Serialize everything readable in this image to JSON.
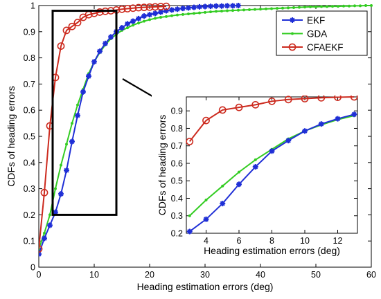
{
  "chart_data": [
    {
      "type": "line",
      "role": "main",
      "xlabel": "Heading estimation errors (deg)",
      "ylabel": "CDFs of heading errors",
      "xlim": [
        0,
        60
      ],
      "ylim": [
        0,
        1
      ],
      "xticks": [
        0,
        10,
        20,
        30,
        40,
        50,
        60
      ],
      "yticks": [
        0,
        0.1,
        0.2,
        0.3,
        0.4,
        0.5,
        0.6,
        0.7,
        0.8,
        0.9,
        1
      ],
      "grid": false,
      "legend": "top-right",
      "series": [
        {
          "name": "EKF",
          "color": "#1f2fd6",
          "marker": "star",
          "x": [
            0,
            1,
            2,
            3,
            4,
            5,
            6,
            7,
            8,
            9,
            10,
            11,
            12,
            13,
            14,
            15,
            16,
            17,
            18,
            19,
            20,
            21,
            22,
            23,
            24,
            25,
            26,
            27,
            28,
            29,
            30,
            31,
            32,
            33,
            34,
            35,
            36
          ],
          "y": [
            0.05,
            0.11,
            0.16,
            0.21,
            0.28,
            0.37,
            0.48,
            0.58,
            0.67,
            0.73,
            0.785,
            0.825,
            0.855,
            0.88,
            0.9,
            0.915,
            0.93,
            0.94,
            0.95,
            0.96,
            0.965,
            0.97,
            0.975,
            0.98,
            0.983,
            0.986,
            0.989,
            0.991,
            0.993,
            0.995,
            0.996,
            0.997,
            0.998,
            0.998,
            0.999,
            0.999,
            1.0
          ]
        },
        {
          "name": "GDA",
          "color": "#33cc22",
          "marker": "dot",
          "x": [
            0,
            1,
            2,
            3,
            4,
            5,
            6,
            7,
            8,
            9,
            10,
            11,
            12,
            13,
            14,
            15,
            16,
            17,
            18,
            19,
            20,
            21,
            22,
            23,
            24,
            25,
            26,
            27,
            28,
            29,
            30,
            31,
            32,
            33,
            34,
            35,
            36,
            37,
            38,
            39,
            40,
            41,
            42,
            43,
            44,
            45,
            46,
            47,
            48,
            49,
            50,
            51,
            52,
            53,
            54,
            55,
            56,
            57,
            58,
            59,
            60
          ],
          "y": [
            0.07,
            0.13,
            0.2,
            0.3,
            0.39,
            0.47,
            0.55,
            0.62,
            0.68,
            0.74,
            0.785,
            0.82,
            0.85,
            0.873,
            0.89,
            0.905,
            0.915,
            0.925,
            0.933,
            0.94,
            0.946,
            0.951,
            0.955,
            0.958,
            0.961,
            0.964,
            0.966,
            0.968,
            0.97,
            0.972,
            0.974,
            0.976,
            0.978,
            0.979,
            0.98,
            0.981,
            0.982,
            0.983,
            0.984,
            0.985,
            0.986,
            0.987,
            0.988,
            0.989,
            0.99,
            0.991,
            0.992,
            0.993,
            0.994,
            0.995,
            0.995,
            0.996,
            0.996,
            0.997,
            0.997,
            0.998,
            0.998,
            0.999,
            0.999,
            1.0,
            1.0
          ]
        },
        {
          "name": "CFAEKF",
          "color": "#cc2a1e",
          "marker": "circle",
          "x": [
            0,
            1,
            2,
            3,
            4,
            5,
            6,
            7,
            8,
            9,
            10,
            11,
            12,
            13,
            14,
            15,
            16,
            17,
            18,
            19,
            20,
            21,
            22,
            23
          ],
          "y": [
            0.07,
            0.285,
            0.54,
            0.725,
            0.845,
            0.905,
            0.92,
            0.935,
            0.955,
            0.965,
            0.97,
            0.975,
            0.978,
            0.98,
            0.983,
            0.986,
            0.988,
            0.99,
            0.992,
            0.993,
            0.994,
            0.995,
            0.996,
            0.997
          ]
        }
      ]
    },
    {
      "type": "line",
      "role": "inset",
      "xlabel": "Heading estimation errors (deg)",
      "ylabel": "CDFs of heading errors",
      "xlim": [
        2.8,
        13.2
      ],
      "ylim": [
        0.2,
        0.98
      ],
      "xticks": [
        4,
        6,
        8,
        10,
        12
      ],
      "yticks": [
        0.2,
        0.3,
        0.4,
        0.5,
        0.6,
        0.7,
        0.8,
        0.9
      ],
      "grid": false,
      "series": [
        {
          "name": "EKF",
          "x": [
            3,
            4,
            5,
            6,
            7,
            8,
            9,
            10,
            11,
            12,
            13
          ],
          "y": [
            0.21,
            0.28,
            0.37,
            0.48,
            0.58,
            0.67,
            0.73,
            0.785,
            0.825,
            0.855,
            0.88
          ]
        },
        {
          "name": "GDA",
          "x": [
            3,
            4,
            5,
            6,
            7,
            8,
            9,
            10,
            11,
            12,
            13
          ],
          "y": [
            0.3,
            0.39,
            0.47,
            0.55,
            0.62,
            0.68,
            0.74,
            0.785,
            0.82,
            0.85,
            0.873
          ]
        },
        {
          "name": "CFAEKF",
          "x": [
            3,
            4,
            5,
            6,
            7,
            8,
            9,
            10,
            11,
            12,
            13
          ],
          "y": [
            0.725,
            0.845,
            0.905,
            0.92,
            0.935,
            0.955,
            0.965,
            0.97,
            0.975,
            0.978,
            0.98
          ]
        }
      ]
    }
  ],
  "annotations": {
    "zoom_box_x": [
      2.5,
      14
    ],
    "zoom_box_y": [
      0.2,
      0.98
    ]
  }
}
